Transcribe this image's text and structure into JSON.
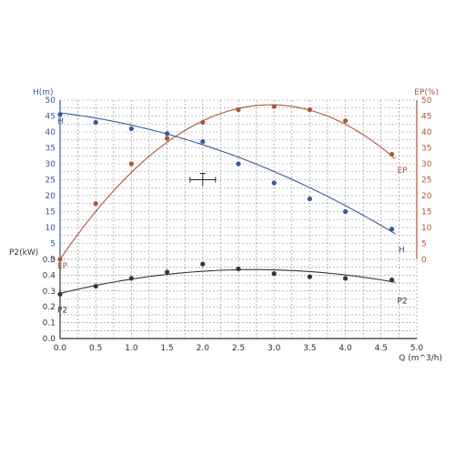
{
  "chart_data": {
    "type": "line",
    "title": "",
    "xlabel": "Q (m^3/h)",
    "xlim": [
      0,
      5
    ],
    "xticks": [
      "0.0",
      "0.5",
      "1.0",
      "1.5",
      "2.0",
      "2.5",
      "3.0",
      "3.5",
      "4.0",
      "4.5",
      "5.0"
    ],
    "grid": true,
    "upper_left_axis": {
      "label": "H(m)",
      "lim": [
        0,
        50
      ],
      "ticks": [
        "0",
        "5",
        "10",
        "15",
        "20",
        "25",
        "30",
        "35",
        "40",
        "45",
        "50"
      ]
    },
    "upper_right_axis": {
      "label": "EP(%)",
      "lim": [
        0,
        50
      ],
      "ticks": [
        "0",
        "5",
        "10",
        "15",
        "20",
        "25",
        "30",
        "35",
        "40",
        "45",
        "50"
      ]
    },
    "lower_left_axis": {
      "label": "P2(kW)",
      "lim": [
        0,
        0.5
      ],
      "ticks": [
        "0.0",
        "0.1",
        "0.2",
        "0.3",
        "0.4",
        "0.5"
      ]
    },
    "series": [
      {
        "name": "H",
        "axis": "upper_left",
        "color": "#3a5a9c",
        "points": [
          {
            "x": 0.0,
            "y": 45.5
          },
          {
            "x": 0.5,
            "y": 43.0
          },
          {
            "x": 1.0,
            "y": 41.0
          },
          {
            "x": 1.5,
            "y": 39.5
          },
          {
            "x": 2.0,
            "y": 37.0
          },
          {
            "x": 2.5,
            "y": 30.0
          },
          {
            "x": 3.0,
            "y": 24.0
          },
          {
            "x": 3.5,
            "y": 19.0
          },
          {
            "x": 4.0,
            "y": 15.0
          },
          {
            "x": 4.65,
            "y": 9.5
          }
        ],
        "fit": [
          {
            "x": 0.0,
            "y": 46.0
          },
          {
            "x": 2.0,
            "y": 36.0
          },
          {
            "x": 4.7,
            "y": 8.0
          }
        ]
      },
      {
        "name": "EP",
        "axis": "upper_right",
        "color": "#b0553a",
        "points": [
          {
            "x": 0.0,
            "y": 0.0
          },
          {
            "x": 0.5,
            "y": 17.5
          },
          {
            "x": 1.0,
            "y": 30.0
          },
          {
            "x": 1.5,
            "y": 38.0
          },
          {
            "x": 2.0,
            "y": 43.0
          },
          {
            "x": 2.5,
            "y": 47.0
          },
          {
            "x": 3.0,
            "y": 48.0
          },
          {
            "x": 3.5,
            "y": 47.0
          },
          {
            "x": 4.0,
            "y": 43.5
          },
          {
            "x": 4.65,
            "y": 33.0
          }
        ],
        "fit": [
          {
            "x": 0.0,
            "y": 0.0
          },
          {
            "x": 2.9,
            "y": 48.5
          },
          {
            "x": 4.7,
            "y": 31.5
          }
        ]
      },
      {
        "name": "P2",
        "axis": "lower_left",
        "color": "#2c3b2c",
        "points": [
          {
            "x": 0.0,
            "y": 0.28
          },
          {
            "x": 0.5,
            "y": 0.33
          },
          {
            "x": 1.0,
            "y": 0.38
          },
          {
            "x": 1.5,
            "y": 0.42
          },
          {
            "x": 2.0,
            "y": 0.47
          },
          {
            "x": 2.5,
            "y": 0.44
          },
          {
            "x": 3.0,
            "y": 0.41
          },
          {
            "x": 3.5,
            "y": 0.39
          },
          {
            "x": 4.0,
            "y": 0.38
          },
          {
            "x": 4.65,
            "y": 0.37
          }
        ],
        "fit": [
          {
            "x": 0.0,
            "y": 0.285
          },
          {
            "x": 2.8,
            "y": 0.435
          },
          {
            "x": 4.7,
            "y": 0.355
          }
        ]
      }
    ],
    "curve_labels": [
      {
        "text": "H",
        "series": "H",
        "x": 0.0,
        "y": 45.5
      },
      {
        "text": "H",
        "series": "H",
        "x": 4.72,
        "y": 5.0
      },
      {
        "text": "EP",
        "series": "EP",
        "x": 0.0,
        "y": 0.0
      },
      {
        "text": "EP",
        "series": "EP",
        "x": 4.7,
        "y": 30.0
      },
      {
        "text": "P2",
        "series": "P2",
        "x": 0.0,
        "y": 0.22
      },
      {
        "text": "P2",
        "series": "P2",
        "x": 4.7,
        "y": 0.28
      }
    ],
    "annotation": {
      "type": "crosshair",
      "x": 2.0,
      "y": 25.0
    }
  },
  "colors": {
    "frame": "#2e2e2e",
    "grid": "#8a8a8a",
    "H": "#3a5a9c",
    "EP": "#b0553a",
    "P2": "#2c3b2c"
  }
}
